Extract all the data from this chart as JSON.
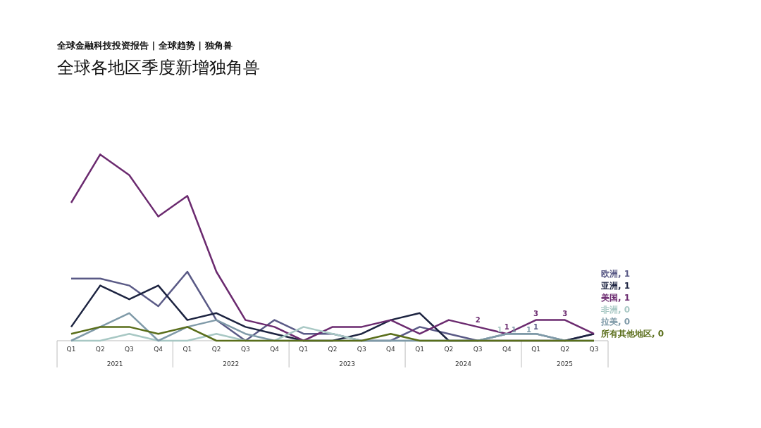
{
  "chart_data": {
    "type": "line",
    "title": "全球各地区季度新增独角兽",
    "subtitle": "全球金融科技投资报告 | 全球趋势 | 独角兽",
    "categories": [
      "Q1",
      "Q2",
      "Q3",
      "Q4",
      "Q1",
      "Q2",
      "Q3",
      "Q4",
      "Q1",
      "Q2",
      "Q3",
      "Q4",
      "Q1",
      "Q2",
      "Q3",
      "Q4",
      "Q1",
      "Q2",
      "Q3"
    ],
    "annotations": [
      "2021",
      "2022",
      "2023",
      "2024",
      "2025"
    ],
    "legend": "right",
    "grid": false,
    "marker": "none",
    "series": [
      {
        "name": "欧洲, 1",
        "color": "#5a5a86",
        "values": [
          9,
          9,
          8,
          5,
          10,
          3,
          0,
          3,
          1,
          1,
          0,
          0,
          2,
          1,
          0,
          1,
          1,
          0,
          1
        ],
        "value_labels": [
          null,
          null,
          null,
          null,
          null,
          null,
          null,
          null,
          null,
          null,
          null,
          null,
          null,
          null,
          null,
          null,
          "1",
          null,
          null
        ]
      },
      {
        "name": "亚洲, 1",
        "color": "#1c2340",
        "values": [
          2,
          8,
          6,
          8,
          3,
          4,
          2,
          1,
          0,
          0,
          1,
          3,
          4,
          0,
          0,
          0,
          0,
          0,
          1
        ]
      },
      {
        "name": "美国, 1",
        "color": "#6b2a6f",
        "values": [
          20,
          27,
          24,
          18,
          21,
          10,
          3,
          2,
          0,
          2,
          2,
          3,
          1,
          3,
          2,
          1,
          3,
          3,
          1
        ],
        "value_labels": [
          null,
          null,
          null,
          null,
          null,
          null,
          null,
          null,
          null,
          null,
          null,
          null,
          null,
          null,
          "2",
          "1",
          "3",
          "3",
          null
        ]
      },
      {
        "name": "非洲, 0",
        "color": "#a8c8c4",
        "values": [
          0,
          0,
          1,
          0,
          0,
          1,
          0,
          0,
          2,
          1,
          0,
          0,
          0,
          0,
          0,
          1,
          1,
          0,
          0
        ],
        "value_labels": [
          null,
          null,
          null,
          null,
          null,
          null,
          null,
          null,
          null,
          null,
          null,
          null,
          null,
          null,
          null,
          "1",
          null,
          null,
          null
        ]
      },
      {
        "name": "拉美, 0",
        "color": "#7f9aa8",
        "values": [
          0,
          2,
          4,
          0,
          2,
          3,
          1,
          0,
          0,
          0,
          0,
          0,
          0,
          0,
          0,
          1,
          1,
          0,
          0
        ],
        "value_labels": [
          null,
          null,
          null,
          null,
          null,
          null,
          null,
          null,
          null,
          null,
          null,
          null,
          null,
          null,
          null,
          "1",
          "1",
          null,
          null
        ]
      },
      {
        "name": "所有其他地区, 0",
        "color": "#5a6e1a",
        "values": [
          1,
          2,
          2,
          1,
          2,
          0,
          0,
          0,
          0,
          0,
          0,
          1,
          0,
          0,
          0,
          0,
          0,
          0,
          0
        ]
      }
    ]
  }
}
